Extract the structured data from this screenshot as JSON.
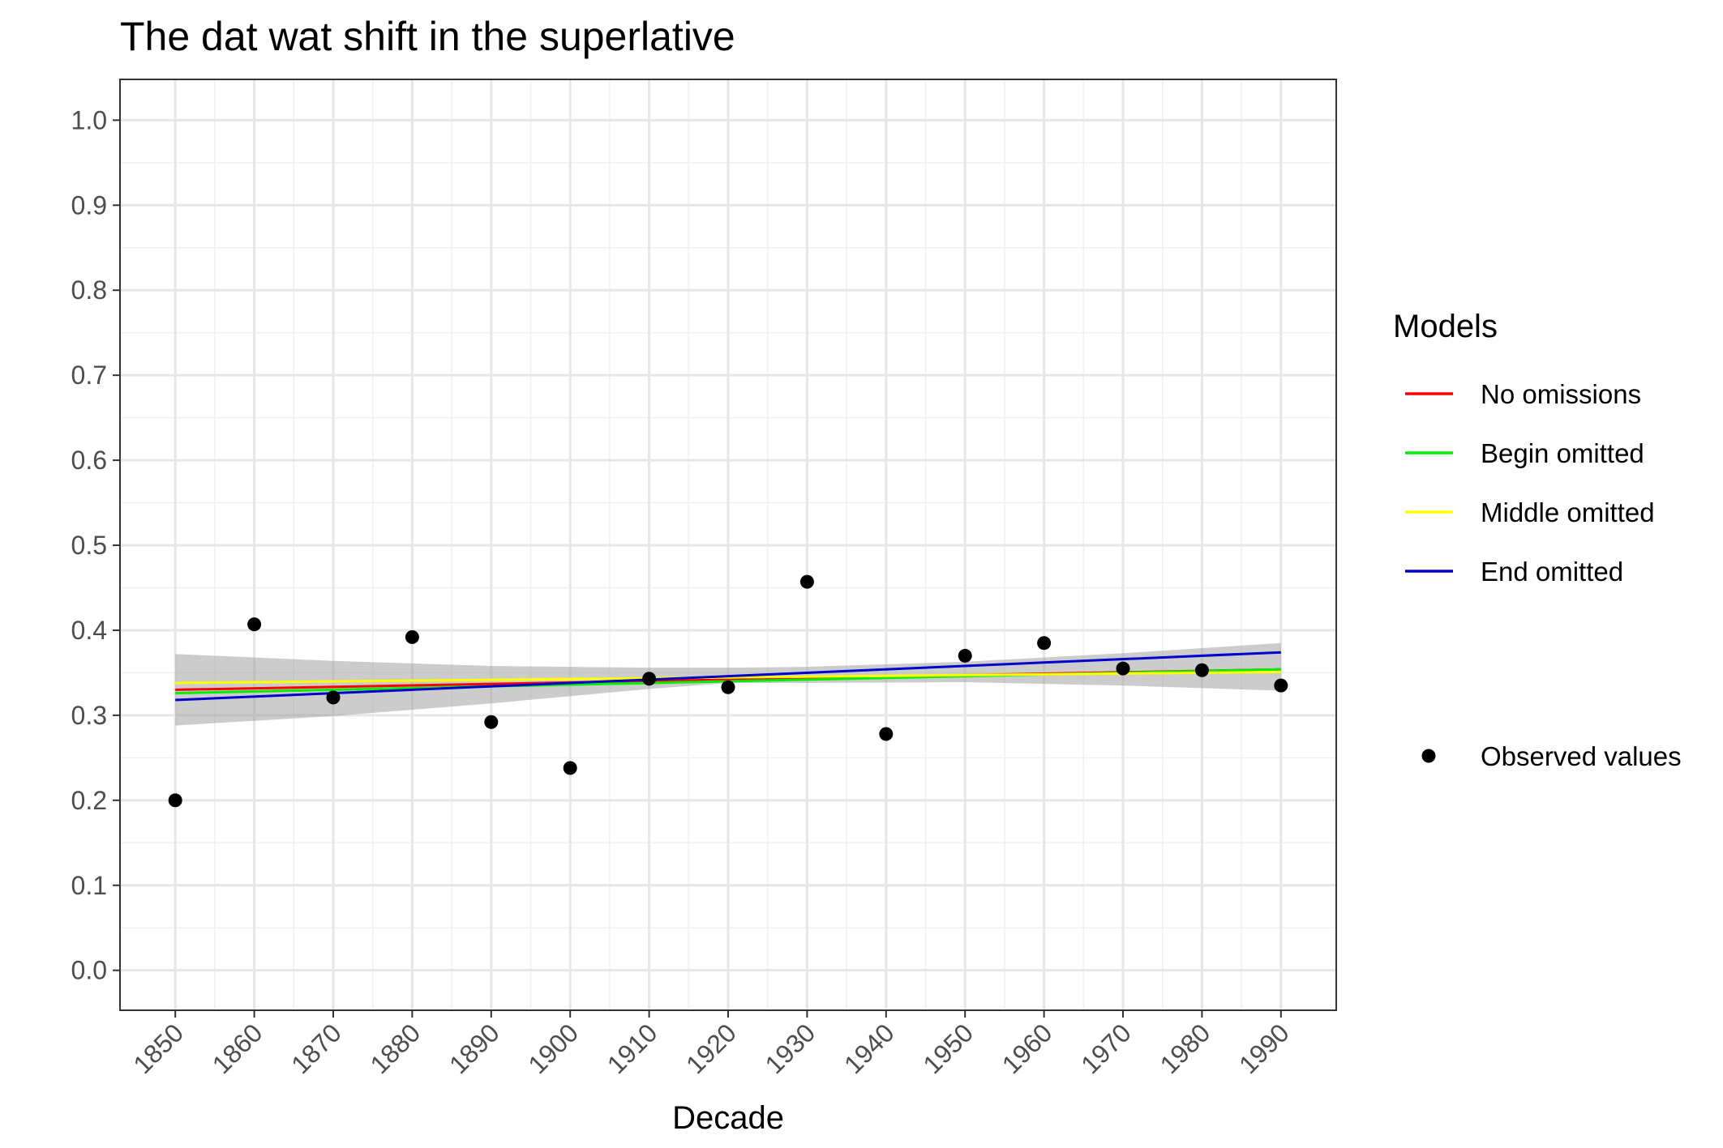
{
  "chart_data": {
    "type": "scatter",
    "title": "The dat wat shift in the superlative",
    "xlabel": "Decade",
    "ylabel": "",
    "xlim": [
      1843,
      1997
    ],
    "ylim": [
      -0.047,
      1.048
    ],
    "x_ticks": [
      1850,
      1860,
      1870,
      1880,
      1890,
      1900,
      1910,
      1920,
      1930,
      1940,
      1950,
      1960,
      1970,
      1980,
      1990
    ],
    "x_tick_labels": [
      "1850",
      "1860",
      "1870",
      "1880",
      "1890",
      "1900",
      "1910",
      "1920",
      "1930",
      "1940",
      "1950",
      "1960",
      "1970",
      "1980",
      "1990"
    ],
    "y_ticks": [
      0.0,
      0.1,
      0.2,
      0.3,
      0.4,
      0.5,
      0.6,
      0.7,
      0.8,
      0.9,
      1.0
    ],
    "y_tick_labels": [
      "0.0",
      "0.1",
      "0.2",
      "0.3",
      "0.4",
      "0.5",
      "0.6",
      "0.7",
      "0.8",
      "0.9",
      "1.0"
    ],
    "grid": true,
    "legend_position": "right",
    "legend_title": "Models",
    "observed": {
      "name": "Observed values",
      "color": "#000000",
      "x": [
        1850,
        1860,
        1870,
        1880,
        1890,
        1900,
        1910,
        1920,
        1930,
        1940,
        1950,
        1960,
        1970,
        1980,
        1990
      ],
      "y": [
        0.2,
        0.407,
        0.321,
        0.392,
        0.292,
        0.238,
        0.343,
        0.333,
        0.457,
        0.278,
        0.37,
        0.385,
        0.355,
        0.353,
        0.335
      ]
    },
    "confidence_band": {
      "color": "#999999",
      "x": [
        1850,
        1870,
        1890,
        1910,
        1920,
        1930,
        1950,
        1970,
        1990
      ],
      "lower": [
        0.288,
        0.299,
        0.314,
        0.331,
        0.338,
        0.338,
        0.339,
        0.335,
        0.329
      ],
      "upper": [
        0.372,
        0.364,
        0.358,
        0.356,
        0.356,
        0.357,
        0.363,
        0.373,
        0.385
      ]
    },
    "series": [
      {
        "name": "No omissions",
        "color": "#ff0000",
        "x": [
          1850,
          1990
        ],
        "y": [
          0.33,
          0.354
        ]
      },
      {
        "name": "Begin omitted",
        "color": "#00ee00",
        "x": [
          1850,
          1990
        ],
        "y": [
          0.326,
          0.354
        ]
      },
      {
        "name": "Middle omitted",
        "color": "#ffff00",
        "x": [
          1850,
          1990
        ],
        "y": [
          0.338,
          0.351
        ]
      },
      {
        "name": "End omitted",
        "color": "#0000cc",
        "x": [
          1850,
          1990
        ],
        "y": [
          0.318,
          0.374
        ]
      }
    ]
  }
}
